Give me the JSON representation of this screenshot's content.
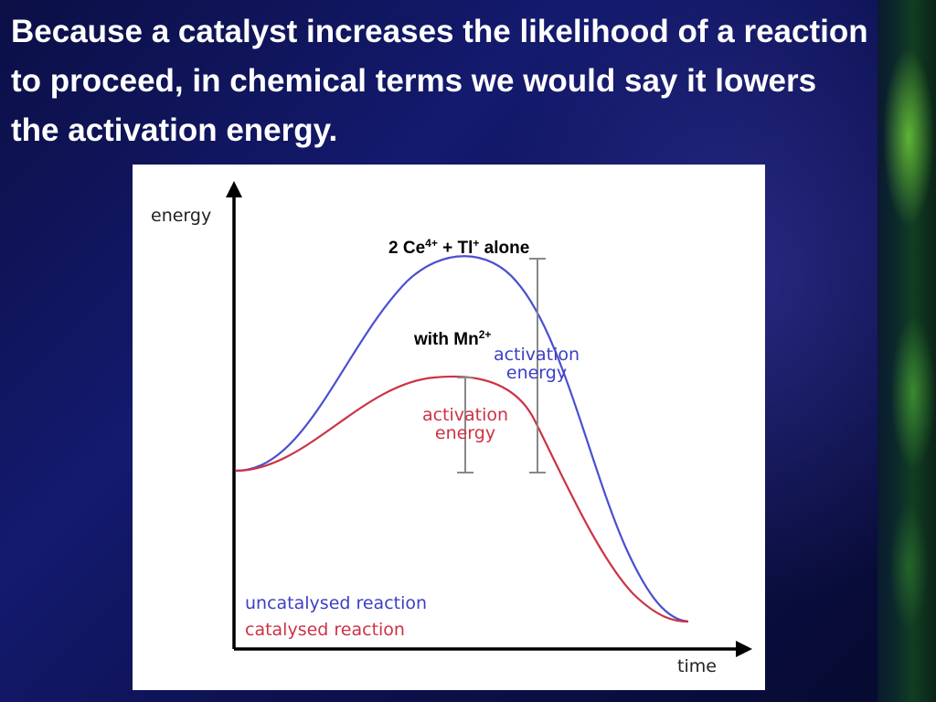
{
  "slide": {
    "heading": "Because a catalyst increases the likelihood of a reaction to proceed, in chemical terms we would say it lowers the activation energy."
  },
  "diagram": {
    "y_axis_label": "energy",
    "x_axis_label": "time",
    "uncatalysed_label_main": "2 Ce",
    "uncatalysed_label_sup1": "4+",
    "uncatalysed_label_mid": " + Tl",
    "uncatalysed_label_sup2": "+",
    "uncatalysed_label_end": " alone",
    "catalysed_label_main": "with Mn",
    "catalysed_label_sup": "2+",
    "blue_activation_line1": "activation",
    "blue_activation_line2": "energy",
    "red_activation_line1": "activation",
    "red_activation_line2": "energy",
    "legend_uncatalysed": "uncatalysed reaction",
    "legend_catalysed": "catalysed reaction",
    "colors": {
      "uncatalysed": "#4a4fd0",
      "catalysed": "#cc3344",
      "axes": "#000000",
      "bracket": "#888888"
    }
  }
}
